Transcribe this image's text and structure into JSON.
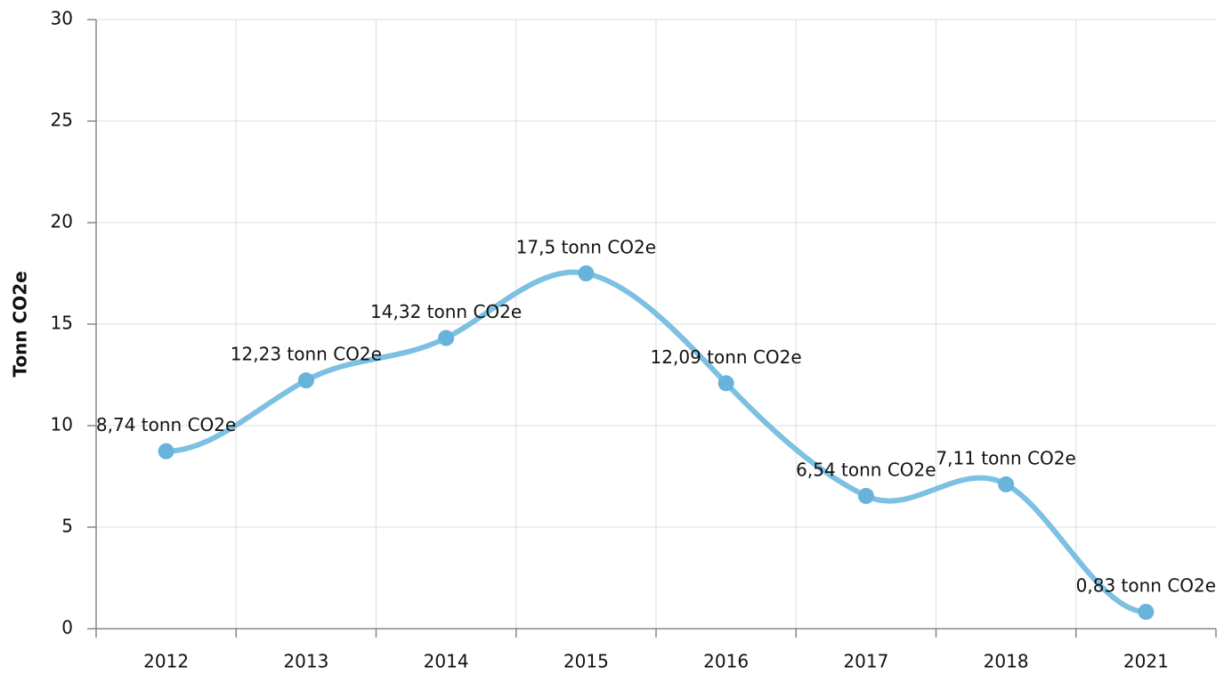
{
  "chart_data": {
    "type": "line",
    "smooth": true,
    "ylabel": "Tonn CO2e",
    "categories": [
      "2012",
      "2013",
      "2014",
      "2015",
      "2016",
      "2017",
      "2018",
      "2021"
    ],
    "values": [
      8.74,
      12.23,
      14.32,
      17.5,
      12.09,
      6.54,
      7.11,
      0.83
    ],
    "value_labels": [
      "8,74 tonn CO2e",
      "12,23 tonn CO2e",
      "14,32 tonn CO2e",
      "17,5 tonn CO2e",
      "12,09 tonn CO2e",
      "6,54 tonn CO2e",
      "7,11 tonn CO2e",
      "0,83 tonn CO2e"
    ],
    "color": "#7cc0e2",
    "marker_color": "#68b3dc",
    "ylim": [
      0,
      30
    ],
    "yticks": [
      0,
      5,
      10,
      15,
      20,
      25,
      30
    ],
    "grid": true
  }
}
